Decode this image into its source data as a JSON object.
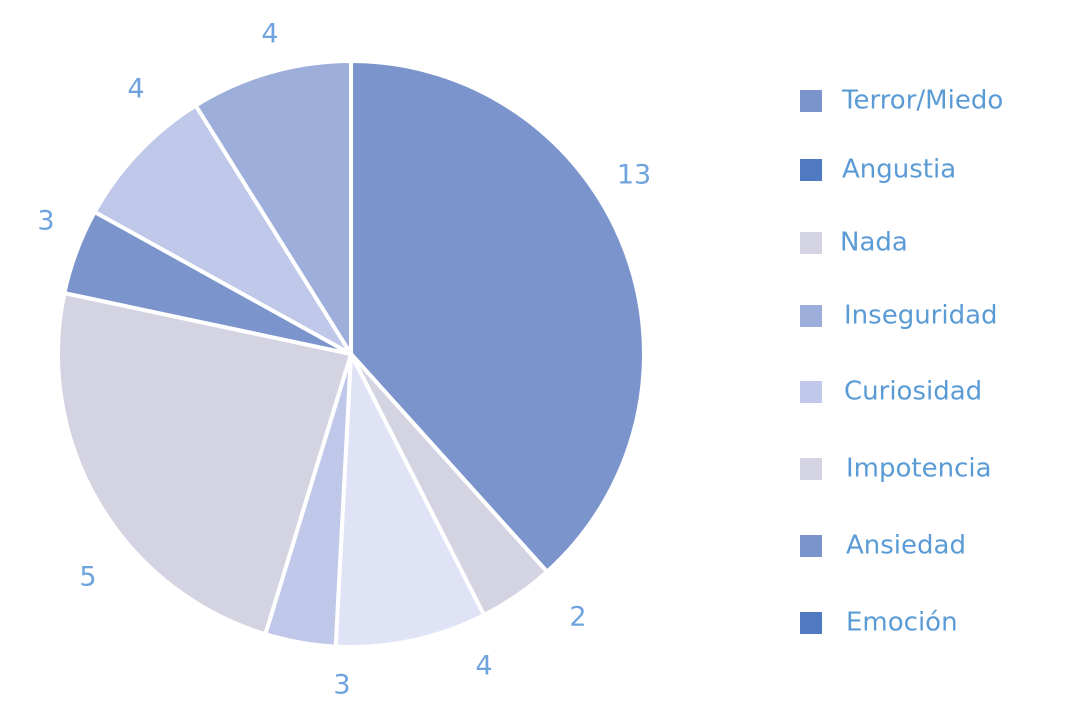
{
  "chart_data": {
    "type": "pie",
    "title": "",
    "legend_position": "right",
    "slices": [
      {
        "label": "",
        "value": 13,
        "color": "#7b95cc"
      },
      {
        "label": "",
        "value": 2,
        "color": "#d4d3e2"
      },
      {
        "label": "",
        "value": 4,
        "color": "#e0e3f5"
      },
      {
        "label": "",
        "value": 3,
        "color": "#bfc8e8"
      },
      {
        "label": "",
        "value": 5,
        "color": "#d4d3e2"
      },
      {
        "label": "",
        "value": 3,
        "color": "#7b95cc"
      },
      {
        "label": "",
        "value": 4,
        "color": "#bfc8e8"
      },
      {
        "label": "",
        "value": 4,
        "color": "#9eaedb"
      }
    ],
    "legend": [
      {
        "label": "Terror/Miedo",
        "color": "#7b95cc"
      },
      {
        "label": "Angustia",
        "color": "#4f79c0"
      },
      {
        "label": "Nada",
        "color": "#d4d3e2"
      },
      {
        "label": "Inseguridad",
        "color": "#9eaedb"
      },
      {
        "label": "Curiosidad",
        "color": "#bfc8e8"
      },
      {
        "label": "Impotencia",
        "color": "#d4d3e2"
      },
      {
        "label": "Ansiedad",
        "color": "#7b95cc"
      },
      {
        "label": "Emoción",
        "color": "#4f79c0"
      }
    ]
  }
}
